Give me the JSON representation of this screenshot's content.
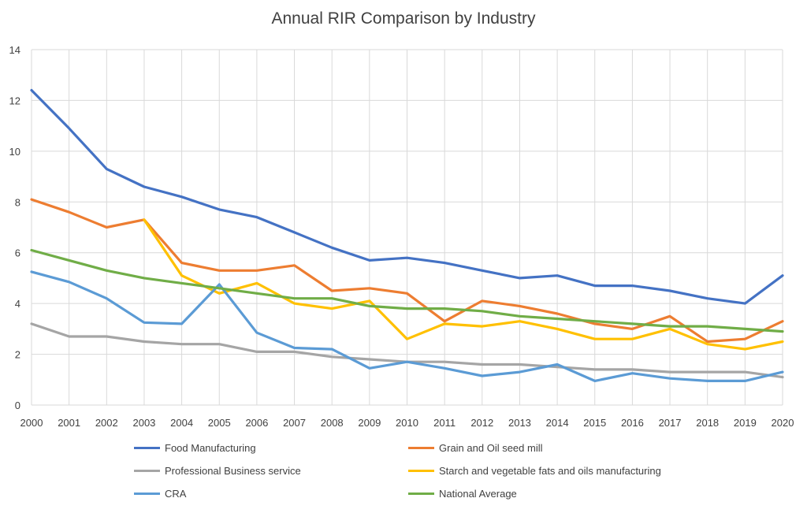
{
  "chart_data": {
    "type": "line",
    "title": "Annual RIR Comparison by Industry",
    "xlabel": "",
    "ylabel": "",
    "categories": [
      "2000",
      "2001",
      "2002",
      "2003",
      "2004",
      "2005",
      "2006",
      "2007",
      "2008",
      "2009",
      "2010",
      "2011",
      "2012",
      "2013",
      "2014",
      "2015",
      "2016",
      "2017",
      "2018",
      "2019",
      "2020"
    ],
    "ylim": [
      0,
      14
    ],
    "yticks": [
      0,
      2,
      4,
      6,
      8,
      10,
      12,
      14
    ],
    "grid": true,
    "legend_position": "bottom",
    "series": [
      {
        "name": "Food Manufacturing",
        "color": "#4472C4",
        "values": [
          12.4,
          10.9,
          9.3,
          8.6,
          8.2,
          7.7,
          7.4,
          6.8,
          6.2,
          5.7,
          5.8,
          5.6,
          5.3,
          5.0,
          5.1,
          4.7,
          4.7,
          4.5,
          4.2,
          4.0,
          5.1
        ]
      },
      {
        "name": "Grain and Oil seed mill",
        "color": "#ED7D31",
        "values": [
          8.1,
          7.6,
          7.0,
          7.3,
          5.6,
          5.3,
          5.3,
          5.5,
          4.5,
          4.6,
          4.4,
          3.3,
          4.1,
          3.9,
          3.6,
          3.2,
          3.0,
          3.5,
          2.5,
          2.6,
          3.3
        ]
      },
      {
        "name": "Professional Business service",
        "color": "#A5A5A5",
        "values": [
          3.2,
          2.7,
          2.7,
          2.5,
          2.4,
          2.4,
          2.1,
          2.1,
          1.9,
          1.8,
          1.7,
          1.7,
          1.6,
          1.6,
          1.5,
          1.4,
          1.4,
          1.3,
          1.3,
          1.3,
          1.1
        ]
      },
      {
        "name": "Starch and vegetable fats and oils manufacturing",
        "color": "#FFC000",
        "values": [
          null,
          null,
          null,
          7.3,
          5.1,
          4.4,
          4.8,
          4.0,
          3.8,
          4.1,
          2.6,
          3.2,
          3.1,
          3.3,
          3.0,
          2.6,
          2.6,
          3.0,
          2.4,
          2.2,
          2.5
        ]
      },
      {
        "name": "CRA",
        "color": "#5B9BD5",
        "values": [
          5.25,
          4.85,
          4.2,
          3.25,
          3.2,
          4.75,
          2.85,
          2.25,
          2.2,
          1.45,
          1.7,
          1.45,
          1.15,
          1.3,
          1.6,
          0.95,
          1.25,
          1.05,
          0.95,
          0.95,
          1.3
        ]
      },
      {
        "name": "National Average",
        "color": "#70AD47",
        "values": [
          6.1,
          5.7,
          5.3,
          5.0,
          4.8,
          4.6,
          4.4,
          4.2,
          4.2,
          3.9,
          3.8,
          3.8,
          3.7,
          3.5,
          3.4,
          3.3,
          3.2,
          3.1,
          3.1,
          3.0,
          2.9
        ]
      }
    ]
  }
}
